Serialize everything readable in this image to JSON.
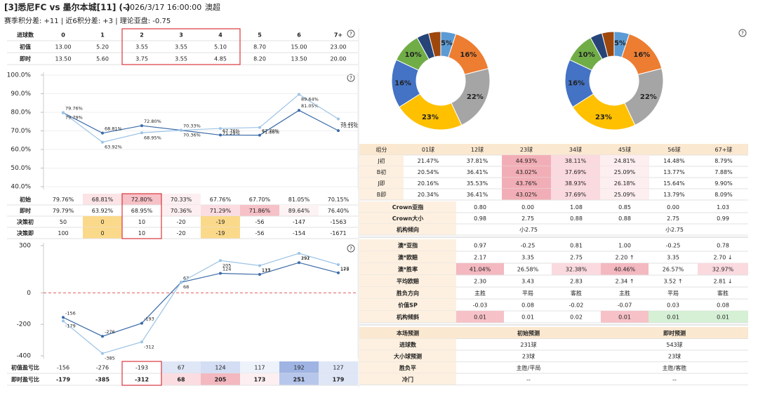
{
  "header": {
    "match": "[3]悉尼FC vs 墨尔本城[11] (-)",
    "time": "2026/3/17 16:00:00",
    "league": "澳超",
    "subtitle": "赛季积分差: +11 | 近6积分差: +3 | 理论亚盘: -0.75",
    "help_icon": "?"
  },
  "odds_table": {
    "header": [
      "进球数",
      "0",
      "1",
      "2",
      "3",
      "4",
      "5",
      "6",
      "7+"
    ],
    "rows": [
      [
        "初值",
        "13.00",
        "5.20",
        "3.55",
        "3.55",
        "5.10",
        "8.70",
        "15.00",
        "23.00"
      ],
      [
        "即时",
        "13.50",
        "5.60",
        "3.75",
        "3.55",
        "4.85",
        "8.20",
        "13.50",
        "20.00"
      ]
    ]
  },
  "chart_data": [
    {
      "type": "line",
      "ylim": [
        40,
        100
      ],
      "grid": true,
      "yticks": [
        {
          "value": 40,
          "label": "40.0%"
        },
        {
          "value": 50,
          "label": "50.0%"
        },
        {
          "value": 60,
          "label": "60.0%"
        },
        {
          "value": 70,
          "label": "70.0%"
        },
        {
          "value": 80,
          "label": "80.0%"
        },
        {
          "value": 90,
          "label": "90.0%"
        },
        {
          "value": 100,
          "label": "100.0%"
        }
      ],
      "series": [
        {
          "color": "#3a6aa8",
          "values": [
            79.76,
            68.81,
            72.8,
            70.33,
            67.76,
            67.7,
            81.05,
            70.15
          ],
          "value_labels": [
            "79.76%",
            "68.81%",
            "72.80%",
            "70.33%",
            "67.76%",
            "67.70%",
            "81.05%",
            "70.15%"
          ]
        },
        {
          "color": "#9cc3e6",
          "values": [
            79.79,
            63.92,
            68.95,
            70.36,
            71.29,
            71.86,
            89.64,
            76.4
          ],
          "value_labels": [
            "79.79%",
            "63.92%",
            "68.95%",
            "70.36%",
            "71.29%",
            "71.86%",
            "89.64%",
            "76.40%"
          ]
        }
      ]
    },
    {
      "type": "line",
      "ylim": [
        -400,
        300
      ],
      "grid": false,
      "zero_line_color": "#e05a5a",
      "yticks": [
        -400,
        -200,
        0,
        300
      ],
      "series": [
        {
          "color": "#3a6aa8",
          "values": [
            -156,
            -276,
            -193,
            67,
            124,
            117,
            192,
            127
          ]
        },
        {
          "color": "#9cc3e6",
          "values": [
            -179,
            -385,
            -312,
            68,
            205,
            173,
            251,
            179
          ]
        }
      ]
    },
    {
      "type": "pie",
      "donut": true,
      "values": [
        5,
        16,
        22,
        23,
        16,
        10,
        4,
        4
      ],
      "value_labels": [
        "5%",
        "16%",
        "22%",
        "23%",
        "16%",
        "10%",
        null,
        null
      ],
      "colors": [
        "#5b9bd5",
        "#ed7d31",
        "#a5a5a5",
        "#ffc000",
        "#4472c4",
        "#70ad47",
        "#264478",
        "#9e480e"
      ]
    },
    {
      "type": "pie",
      "donut": true,
      "values": [
        5,
        16,
        22,
        23,
        16,
        10,
        4,
        4
      ],
      "value_labels": [
        "5%",
        "16%",
        "22%",
        "23%",
        "16%",
        "10%",
        null,
        null
      ],
      "colors": [
        "#5b9bd5",
        "#ed7d31",
        "#a5a5a5",
        "#ffc000",
        "#4472c4",
        "#70ad47",
        "#264478",
        "#9e480e"
      ]
    }
  ],
  "prob_table": {
    "rows": [
      [
        "初始",
        "79.76%",
        "68.81%",
        "72.80%",
        "70.33%",
        "67.76%",
        "67.70%",
        "81.05%",
        "70.15%"
      ],
      [
        "即时",
        "79.79%",
        "63.92%",
        "68.95%",
        "70.36%",
        "71.29%",
        "71.86%",
        "89.64%",
        "76.40%"
      ],
      [
        "决策初",
        "50",
        "0",
        "10",
        "-20",
        "-19",
        "-56",
        "-147",
        "-1563"
      ],
      [
        "决策即",
        "100",
        "0",
        "10",
        "-20",
        "-19",
        "-56",
        "-154",
        "-1671"
      ]
    ]
  },
  "ratio_table": {
    "rows": [
      [
        "初值盈亏比",
        "-156",
        "-276",
        "-193",
        "67",
        "124",
        "117",
        "192",
        "127"
      ],
      [
        "即时盈亏比",
        "-179",
        "-385",
        "-312",
        "68",
        "205",
        "173",
        "251",
        "179"
      ]
    ]
  },
  "score_table": {
    "header": [
      "组分",
      "01球",
      "12球",
      "23球",
      "34球",
      "45球",
      "56球",
      "67+球"
    ],
    "rows": [
      [
        "J初",
        "21.47%",
        "37.81%",
        "44.93%",
        "38.11%",
        "24.81%",
        "14.48%",
        "8.79%"
      ],
      [
        "B初",
        "20.54%",
        "36.41%",
        "43.02%",
        "37.69%",
        "25.09%",
        "13.77%",
        "7.88%"
      ],
      [
        "J即",
        "20.16%",
        "35.53%",
        "43.76%",
        "38.93%",
        "26.18%",
        "15.64%",
        "9.90%"
      ],
      [
        "B即",
        "20.34%",
        "36.41%",
        "43.02%",
        "37.69%",
        "25.09%",
        "13.79%",
        "8.09%"
      ]
    ]
  },
  "crown_table": {
    "rows": [
      [
        "Crown亚指",
        "0.80",
        "0.00",
        "1.08",
        "0.85",
        "0.00",
        "1.03"
      ],
      [
        "Crown大小",
        "0.98",
        "2.75",
        "0.88",
        "0.88",
        "2.75",
        "0.99"
      ],
      [
        "机构倾向",
        "小2.75",
        "小2.75"
      ]
    ]
  },
  "market_table": {
    "rows": [
      [
        "澳*亚指",
        "0.97",
        "-0.25",
        "0.81",
        "1.00",
        "-0.25",
        "0.78"
      ],
      [
        "澳*欧赔",
        "2.17",
        "3.35",
        "2.75",
        "2.20 ↑",
        "3.35",
        "2.70 ↓"
      ],
      [
        "澳*胜率",
        "41.04%",
        "26.58%",
        "32.38%",
        "40.46%",
        "26.57%",
        "32.97%"
      ],
      [
        "平均欧赔",
        "2.30",
        "3.43",
        "2.83",
        "2.34 ↑",
        "3.52 ↑",
        "2.81 ↓"
      ],
      [
        "胜负方向",
        "主胜",
        "平局",
        "客胜",
        "主胜",
        "平局",
        "客胜"
      ],
      [
        "价值SP",
        "-0.03",
        "0.08",
        "-0.02",
        "-0.07",
        "0.03",
        "0.08"
      ],
      [
        "机构倾斜",
        "0.01",
        "0.01",
        "0.02",
        "0.01",
        "0.01",
        "0.01"
      ]
    ]
  },
  "forecast_table": {
    "header": [
      "本场预测",
      "初始预测",
      "即时预测"
    ],
    "rows": [
      [
        "进球数",
        "231球",
        "543球"
      ],
      [
        "大小球预测",
        "23球",
        "23球"
      ],
      [
        "胜负平",
        "主胜/平局",
        "主胜/客胜"
      ],
      [
        "冷门",
        "--",
        "--"
      ]
    ]
  }
}
